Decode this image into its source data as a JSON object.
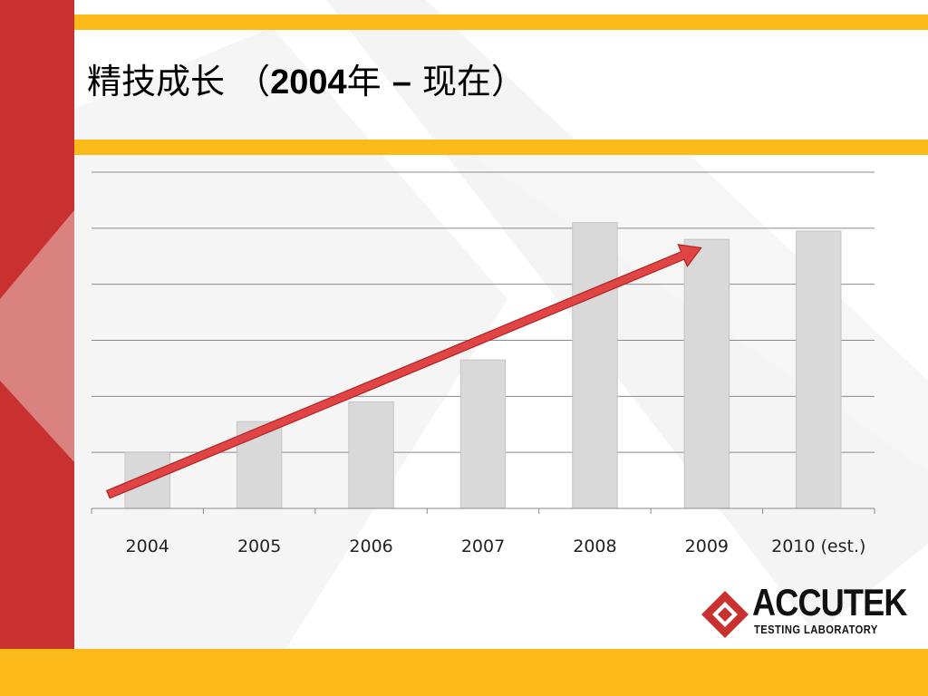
{
  "slide": {
    "title_prefix": "精技成长 （",
    "title_years": "2004",
    "title_suffix_a": "年 ",
    "title_dash": "–",
    "title_suffix_b": " 现在）"
  },
  "logo": {
    "name": "ACCUTEK",
    "subtitle": "TESTING LABORATORY"
  },
  "colors": {
    "red": "#c8312f",
    "yellow": "#fbb91a",
    "bar_fill": "#d9d9d9",
    "arrow": "#e04444"
  },
  "chart_data": {
    "type": "bar",
    "categories": [
      "2004",
      "2005",
      "2006",
      "2007",
      "2008",
      "2009",
      "2010 (est.)"
    ],
    "values": [
      1.0,
      1.55,
      1.9,
      2.65,
      5.1,
      4.8,
      4.95
    ],
    "ylim": [
      0,
      6
    ],
    "grid": true,
    "yaxis_labels": false,
    "annotation": "upward-trend-arrow",
    "trend_from": [
      0,
      0.25
    ],
    "trend_to": [
      6.0,
      4.65
    ]
  }
}
